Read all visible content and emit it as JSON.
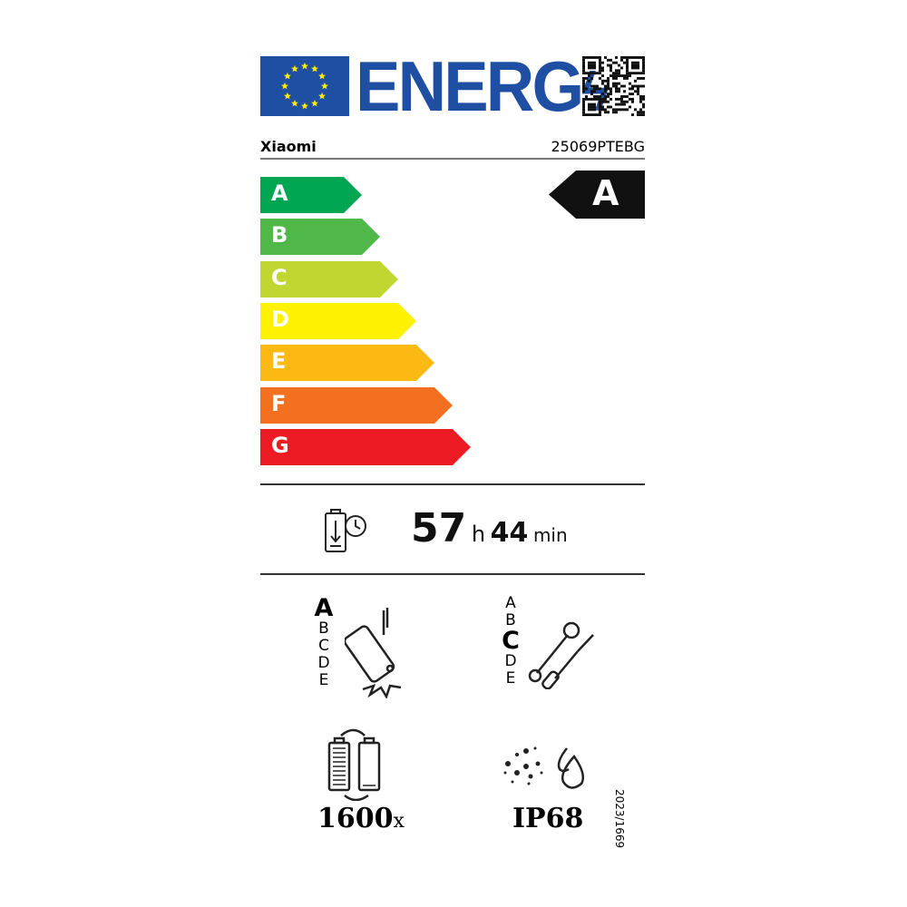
{
  "header": {
    "logo_text": "ENERG",
    "brand": "Xiaomi",
    "model": "25069PTEBG"
  },
  "energy_scale": {
    "classes": [
      "A",
      "B",
      "C",
      "D",
      "E",
      "F",
      "G"
    ],
    "colors": [
      "#00a651",
      "#50b848",
      "#bfd730",
      "#fff200",
      "#fdb913",
      "#f37021",
      "#ed1c24"
    ],
    "rating": "A"
  },
  "battery_endurance": {
    "icon": "battery-clock-icon",
    "hours": "57",
    "hours_unit": "h",
    "minutes": "44",
    "minutes_unit": "min"
  },
  "drop_resistance": {
    "icon": "phone-drop-icon",
    "classes": [
      "A",
      "B",
      "C",
      "D",
      "E"
    ],
    "rating": "A"
  },
  "repairability": {
    "icon": "wrench-screwdriver-icon",
    "classes": [
      "A",
      "B",
      "C",
      "D",
      "E"
    ],
    "rating": "C"
  },
  "battery_cycles": {
    "icon": "battery-cycle-icon",
    "value": "1600",
    "unit": "x"
  },
  "ingress_protection": {
    "icon": "dust-water-icon",
    "value": "IP68"
  },
  "regulation": "2023/1669"
}
